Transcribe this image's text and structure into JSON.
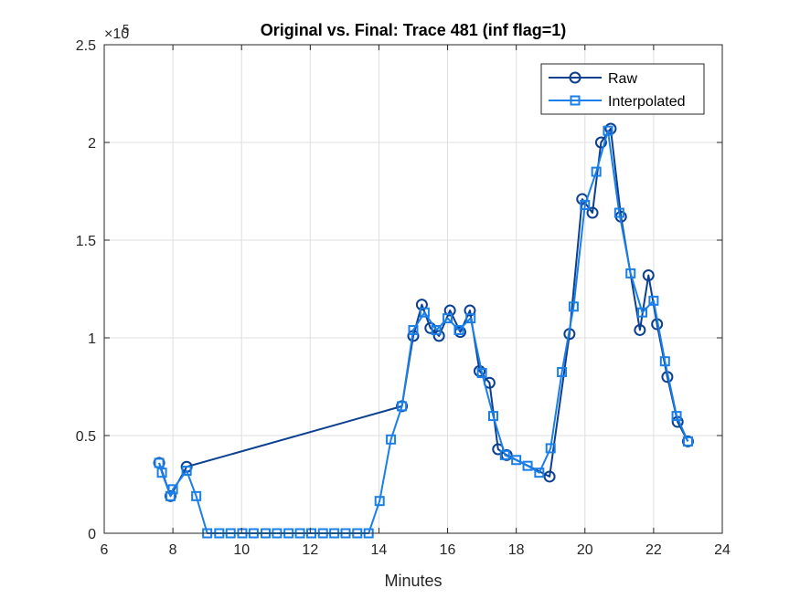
{
  "chart_data": {
    "type": "line",
    "title": "Original vs. Final: Trace 481 (inf flag=1)",
    "xlabel": "Minutes",
    "ylabel": "",
    "xlim": [
      6,
      24
    ],
    "ylim": [
      0,
      250000
    ],
    "xticks": [
      6,
      8,
      10,
      12,
      14,
      16,
      18,
      20,
      22,
      24
    ],
    "xtick_labels": [
      "6",
      "8",
      "10",
      "12",
      "14",
      "16",
      "18",
      "20",
      "22",
      "24"
    ],
    "yticks": [
      0,
      50000,
      100000,
      150000,
      200000,
      250000
    ],
    "ytick_labels": [
      "0",
      "0.5",
      "1",
      "1.5",
      "2",
      "2.5"
    ],
    "y_exponent_base": "×10",
    "y_exponent_power": "5",
    "grid": true,
    "legend_position": "top-right",
    "series": [
      {
        "name": "Raw",
        "color": "#0b3f8f",
        "marker": "circle",
        "x": [
          7.6,
          7.93,
          8.4,
          14.67,
          15.0,
          15.25,
          15.5,
          15.75,
          16.07,
          16.37,
          16.65,
          16.93,
          17.22,
          17.47,
          17.72,
          18.97,
          19.55,
          19.92,
          20.22,
          20.47,
          20.75,
          21.05,
          21.6,
          21.85,
          22.1,
          22.4,
          22.7,
          23.0
        ],
        "y": [
          36000,
          19000,
          34000,
          65000,
          101000,
          117000,
          105000,
          101000,
          114000,
          103000,
          114000,
          83000,
          77000,
          43000,
          40000,
          29000,
          102000,
          171000,
          164000,
          200000,
          207000,
          162000,
          104000,
          132000,
          107000,
          80000,
          57000,
          47000
        ]
      },
      {
        "name": "Interpolated",
        "color": "#1a7fe8",
        "marker": "square",
        "x": [
          7.6,
          7.68,
          7.93,
          8.0,
          8.4,
          8.68,
          9.0,
          9.35,
          9.68,
          10.02,
          10.35,
          10.7,
          11.03,
          11.37,
          11.7,
          12.03,
          12.37,
          12.7,
          13.03,
          13.37,
          13.7,
          14.02,
          14.35,
          14.67,
          15.0,
          15.33,
          15.67,
          16.0,
          16.33,
          16.67,
          17.0,
          17.33,
          17.67,
          18.0,
          18.33,
          18.67,
          19.0,
          19.33,
          19.67,
          20.0,
          20.33,
          20.67,
          21.0,
          21.33,
          21.67,
          22.0,
          22.33,
          22.67,
          23.0
        ],
        "y": [
          36000,
          31000,
          19000,
          22500,
          32000,
          19000,
          0,
          0,
          0,
          0,
          0,
          0,
          0,
          0,
          0,
          0,
          0,
          0,
          0,
          0,
          0,
          16500,
          48000,
          65000,
          104000,
          113000,
          104000,
          110000,
          104000,
          110000,
          82000,
          60000,
          40000,
          37500,
          34500,
          31000,
          43500,
          82500,
          116000,
          168000,
          185000,
          206000,
          164000,
          133000,
          113000,
          119000,
          88000,
          60000,
          47000
        ]
      }
    ]
  }
}
